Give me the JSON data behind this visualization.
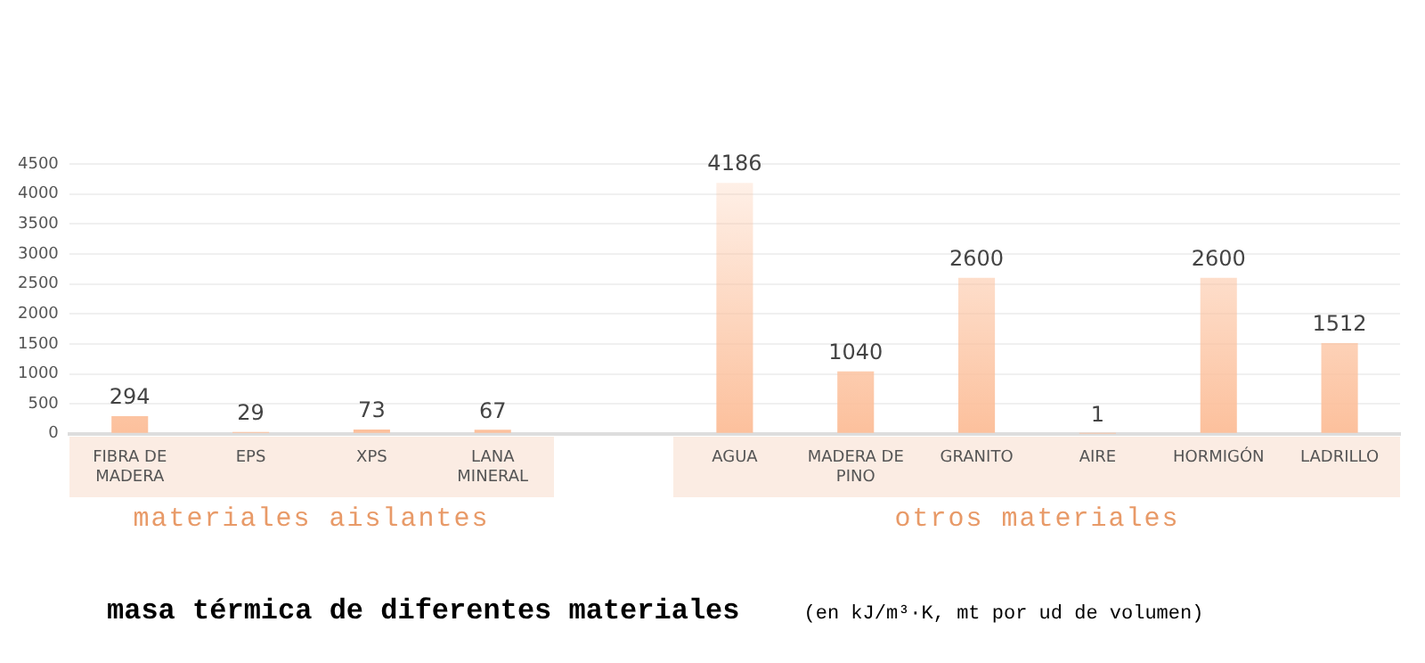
{
  "chart_data": {
    "type": "bar",
    "title": "masa térmica de diferentes materiales",
    "subtitle": "(en kJ/m³·K, mt por ud de volumen)",
    "categories": [
      "FIBRA DE MADERA",
      "EPS",
      "XPS",
      "LANA MINERAL",
      null,
      "AGUA",
      "MADERA DE PINO",
      "GRANITO",
      "AIRE",
      "HORMIGÓN",
      "LADRILLO"
    ],
    "values": [
      294,
      29,
      73,
      67,
      null,
      4186,
      1040,
      2600,
      1,
      2600,
      1512
    ],
    "color": "#fcc09c",
    "ylim": [
      0,
      4500
    ],
    "yticks": [
      0,
      500,
      1000,
      1500,
      2000,
      2500,
      3000,
      3500,
      4000,
      4500
    ],
    "grid": "y",
    "legend": false,
    "data_labels": true,
    "annotations": [
      "materiales aislantes",
      "otros materiales"
    ]
  }
}
